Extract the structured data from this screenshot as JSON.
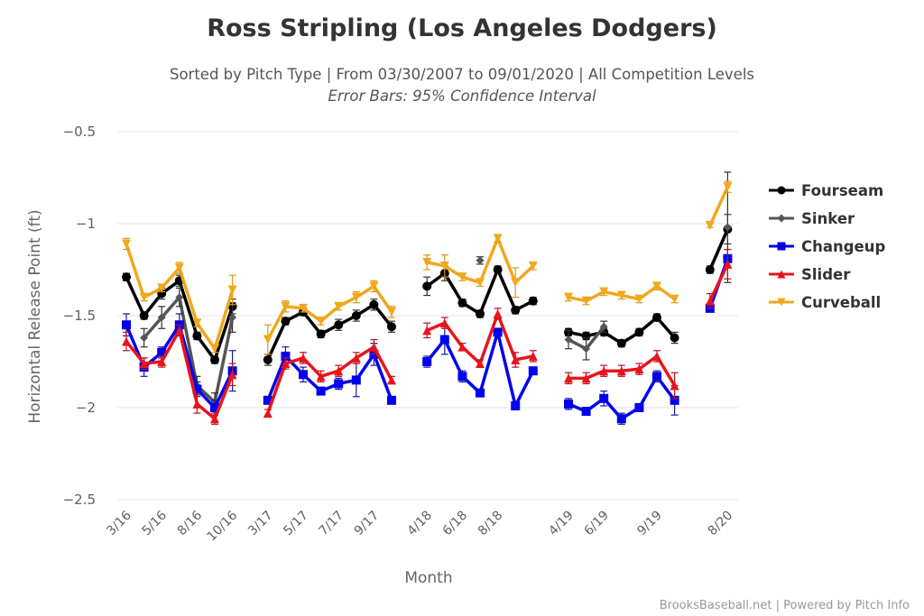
{
  "chart_data": {
    "type": "line",
    "title": "Ross Stripling (Los Angeles Dodgers)",
    "subtitle": "Sorted by Pitch Type | From 03/30/2007 to 09/01/2020 | All Competition Levels",
    "subtitle2": "Error Bars: 95% Confidence Interval",
    "xlabel": "Month",
    "ylabel": "Horizontal Release Point (ft)",
    "ylim": [
      -2.5,
      -0.5
    ],
    "yticks": [
      "−0.5",
      "−1",
      "−1.5",
      "−2",
      "−2.5"
    ],
    "ytick_values": [
      -0.5,
      -1,
      -1.5,
      -2,
      -2.5
    ],
    "grid": true,
    "legend_position": "right",
    "categories": [
      "3/16",
      "4/16",
      "5/16",
      "6/16",
      "8/16",
      "9/16",
      "10/16",
      "",
      "3/17",
      "4/17",
      "5/17",
      "6/17",
      "7/17",
      "8/17",
      "9/17",
      "10/17",
      "",
      "4/18",
      "5/18",
      "6/18",
      "7/18",
      "8/18",
      "9/18",
      "10/18",
      "",
      "4/19",
      "5/19",
      "6/19",
      "7/19",
      "8/19",
      "9/19",
      "10/19",
      "",
      "7/20",
      "8/20"
    ],
    "tick_labels": [
      {
        "index": 0,
        "label": "3/16"
      },
      {
        "index": 2,
        "label": "5/16"
      },
      {
        "index": 4,
        "label": "8/16"
      },
      {
        "index": 6,
        "label": "10/16"
      },
      {
        "index": 8,
        "label": "3/17"
      },
      {
        "index": 10,
        "label": "5/17"
      },
      {
        "index": 12,
        "label": "7/17"
      },
      {
        "index": 14,
        "label": "9/17"
      },
      {
        "index": 17,
        "label": "4/18"
      },
      {
        "index": 19,
        "label": "6/18"
      },
      {
        "index": 21,
        "label": "8/18"
      },
      {
        "index": 25,
        "label": "4/19"
      },
      {
        "index": 27,
        "label": "6/19"
      },
      {
        "index": 30,
        "label": "9/19"
      },
      {
        "index": 34,
        "label": "8/20"
      }
    ],
    "series": [
      {
        "name": "Fourseam",
        "color": "#000000",
        "marker": "circle",
        "values": [
          -1.29,
          -1.5,
          -1.38,
          -1.31,
          -1.61,
          -1.74,
          -1.45,
          null,
          -1.74,
          -1.53,
          -1.48,
          -1.6,
          -1.55,
          -1.5,
          -1.44,
          -1.56,
          null,
          -1.34,
          -1.27,
          -1.43,
          -1.49,
          -1.25,
          -1.47,
          -1.42,
          null,
          -1.59,
          -1.61,
          -1.59,
          -1.65,
          -1.59,
          -1.51,
          -1.62,
          null,
          -1.25,
          -1.03
        ],
        "err": [
          0.02,
          0.02,
          0.03,
          0.03,
          0.02,
          0.02,
          0.04,
          null,
          0.03,
          0.02,
          0.02,
          0.02,
          0.03,
          0.03,
          0.03,
          0.03,
          null,
          0.05,
          0.04,
          0.02,
          0.02,
          0.02,
          0.02,
          0.02,
          null,
          0.02,
          0.02,
          0.02,
          0.02,
          0.02,
          0.02,
          0.03,
          null,
          0.02,
          0.08
        ]
      },
      {
        "name": "Sinker",
        "color": "#555555",
        "marker": "diamond",
        "values": [
          null,
          -1.62,
          -1.51,
          -1.4,
          -1.88,
          -1.97,
          -1.51,
          null,
          null,
          null,
          null,
          null,
          null,
          null,
          null,
          null,
          null,
          null,
          null,
          null,
          -1.2,
          null,
          null,
          null,
          null,
          -1.63,
          -1.68,
          -1.56,
          null,
          null,
          null,
          null,
          null,
          null,
          -1.02
        ],
        "err": [
          null,
          0.05,
          0.06,
          0.05,
          0.05,
          0.05,
          0.08,
          null,
          null,
          null,
          null,
          null,
          null,
          null,
          null,
          null,
          null,
          null,
          null,
          null,
          0.02,
          null,
          null,
          null,
          null,
          0.05,
          0.06,
          0.03,
          null,
          null,
          null,
          null,
          null,
          null,
          0.3
        ]
      },
      {
        "name": "Changeup",
        "color": "#0000ee",
        "marker": "square",
        "values": [
          -1.55,
          -1.78,
          -1.7,
          -1.55,
          -1.9,
          -2.0,
          -1.8,
          null,
          -1.96,
          -1.72,
          -1.82,
          -1.91,
          -1.87,
          -1.85,
          -1.71,
          -1.96,
          null,
          -1.75,
          -1.63,
          -1.83,
          -1.92,
          -1.59,
          -1.99,
          -1.8,
          null,
          -1.98,
          -2.02,
          -1.95,
          -2.06,
          -2.0,
          -1.83,
          -1.96,
          null,
          -1.46,
          -1.19
        ],
        "err": [
          0.06,
          0.05,
          0.03,
          0.06,
          0.04,
          0.04,
          0.11,
          null,
          0.02,
          0.05,
          0.04,
          0.02,
          0.03,
          0.09,
          0.06,
          0.02,
          null,
          0.03,
          0.08,
          0.03,
          0.02,
          0.02,
          0.02,
          0.02,
          null,
          0.03,
          0.02,
          0.04,
          0.03,
          0.02,
          0.03,
          0.08,
          null,
          0.02,
          0.05
        ]
      },
      {
        "name": "Slider",
        "color": "#e8141b",
        "marker": "triangle",
        "values": [
          -1.64,
          -1.76,
          -1.75,
          -1.58,
          -1.98,
          -2.06,
          -1.82,
          null,
          -2.03,
          -1.76,
          -1.73,
          -1.83,
          -1.8,
          -1.73,
          -1.67,
          -1.85,
          null,
          -1.58,
          -1.54,
          -1.67,
          -1.76,
          -1.49,
          -1.74,
          -1.72,
          null,
          -1.84,
          -1.84,
          -1.8,
          -1.8,
          -1.79,
          -1.72,
          -1.88,
          null,
          -1.42,
          -1.22
        ],
        "err": [
          0.05,
          0.03,
          0.03,
          0.03,
          0.05,
          0.03,
          0.06,
          null,
          0.02,
          0.03,
          0.03,
          0.03,
          0.03,
          0.03,
          0.04,
          0.02,
          null,
          0.04,
          0.03,
          0.02,
          0.02,
          0.03,
          0.04,
          0.03,
          null,
          0.03,
          0.03,
          0.03,
          0.03,
          0.03,
          0.03,
          0.07,
          null,
          0.04,
          0.08
        ]
      },
      {
        "name": "Curveball",
        "color": "#f0a81c",
        "marker": "triangle-down",
        "values": [
          -1.11,
          -1.4,
          -1.35,
          -1.24,
          -1.54,
          -1.68,
          -1.36,
          null,
          -1.63,
          -1.45,
          -1.46,
          -1.53,
          -1.45,
          -1.4,
          -1.34,
          -1.48,
          null,
          -1.21,
          -1.23,
          -1.29,
          -1.32,
          -1.08,
          -1.32,
          -1.23,
          null,
          -1.4,
          -1.42,
          -1.37,
          -1.39,
          -1.41,
          -1.34,
          -1.41,
          null,
          -1.01,
          -0.8
        ],
        "err": [
          0.03,
          0.02,
          0.02,
          0.03,
          0.02,
          0.02,
          0.08,
          null,
          0.08,
          0.03,
          0.02,
          0.02,
          0.02,
          0.03,
          0.03,
          0.03,
          null,
          0.04,
          0.06,
          0.02,
          0.02,
          0.02,
          0.08,
          0.02,
          null,
          0.02,
          0.02,
          0.02,
          0.02,
          0.02,
          0.02,
          0.02,
          null,
          0.01,
          0.03
        ]
      }
    ]
  },
  "credits": "BrooksBaseball.net | Powered by Pitch Info"
}
